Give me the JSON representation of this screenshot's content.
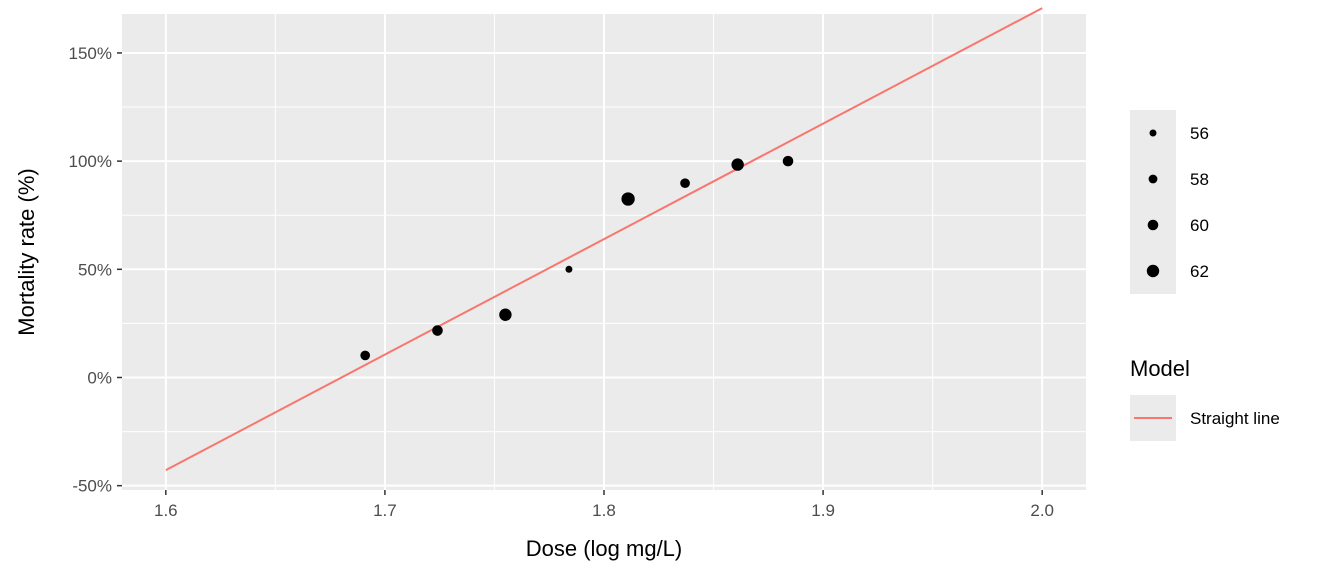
{
  "chart_data": {
    "type": "scatter",
    "xlabel": "Dose (log mg/L)",
    "ylabel": "Mortality rate (%)",
    "xlim": [
      1.58,
      2.02
    ],
    "ylim": [
      -52,
      168
    ],
    "x_ticks": [
      1.6,
      1.7,
      1.8,
      1.9,
      2.0
    ],
    "x_tick_labels": [
      "1.6",
      "1.7",
      "1.8",
      "1.9",
      "2.0"
    ],
    "y_ticks": [
      -50,
      0,
      50,
      100,
      150
    ],
    "y_tick_labels": [
      "-50%",
      "0%",
      "50%",
      "100%",
      "150%"
    ],
    "grid": true,
    "points": [
      {
        "x": 1.691,
        "y": 10.2,
        "size": 59
      },
      {
        "x": 1.724,
        "y": 21.7,
        "size": 60
      },
      {
        "x": 1.755,
        "y": 29.0,
        "size": 62
      },
      {
        "x": 1.784,
        "y": 50.0,
        "size": 56
      },
      {
        "x": 1.811,
        "y": 82.5,
        "size": 63
      },
      {
        "x": 1.837,
        "y": 89.8,
        "size": 59
      },
      {
        "x": 1.861,
        "y": 98.4,
        "size": 62
      },
      {
        "x": 1.884,
        "y": 100.0,
        "size": 60
      }
    ],
    "line": {
      "name": "Straight line",
      "x": [
        1.6,
        2.0
      ],
      "y": [
        -42.8,
        170.7
      ],
      "color": "#F8766D"
    },
    "size_legend": {
      "title": "",
      "values": [
        56,
        58,
        60,
        62
      ],
      "labels": [
        "56",
        "58",
        "60",
        "62"
      ]
    },
    "color_legend": {
      "title": "Model",
      "labels": [
        "Straight line"
      ]
    },
    "legend_position": "right",
    "colors": {
      "panel": "#EBEBEB",
      "grid": "#FFFFFF",
      "point": "#000000",
      "line": "#F8766D"
    }
  }
}
